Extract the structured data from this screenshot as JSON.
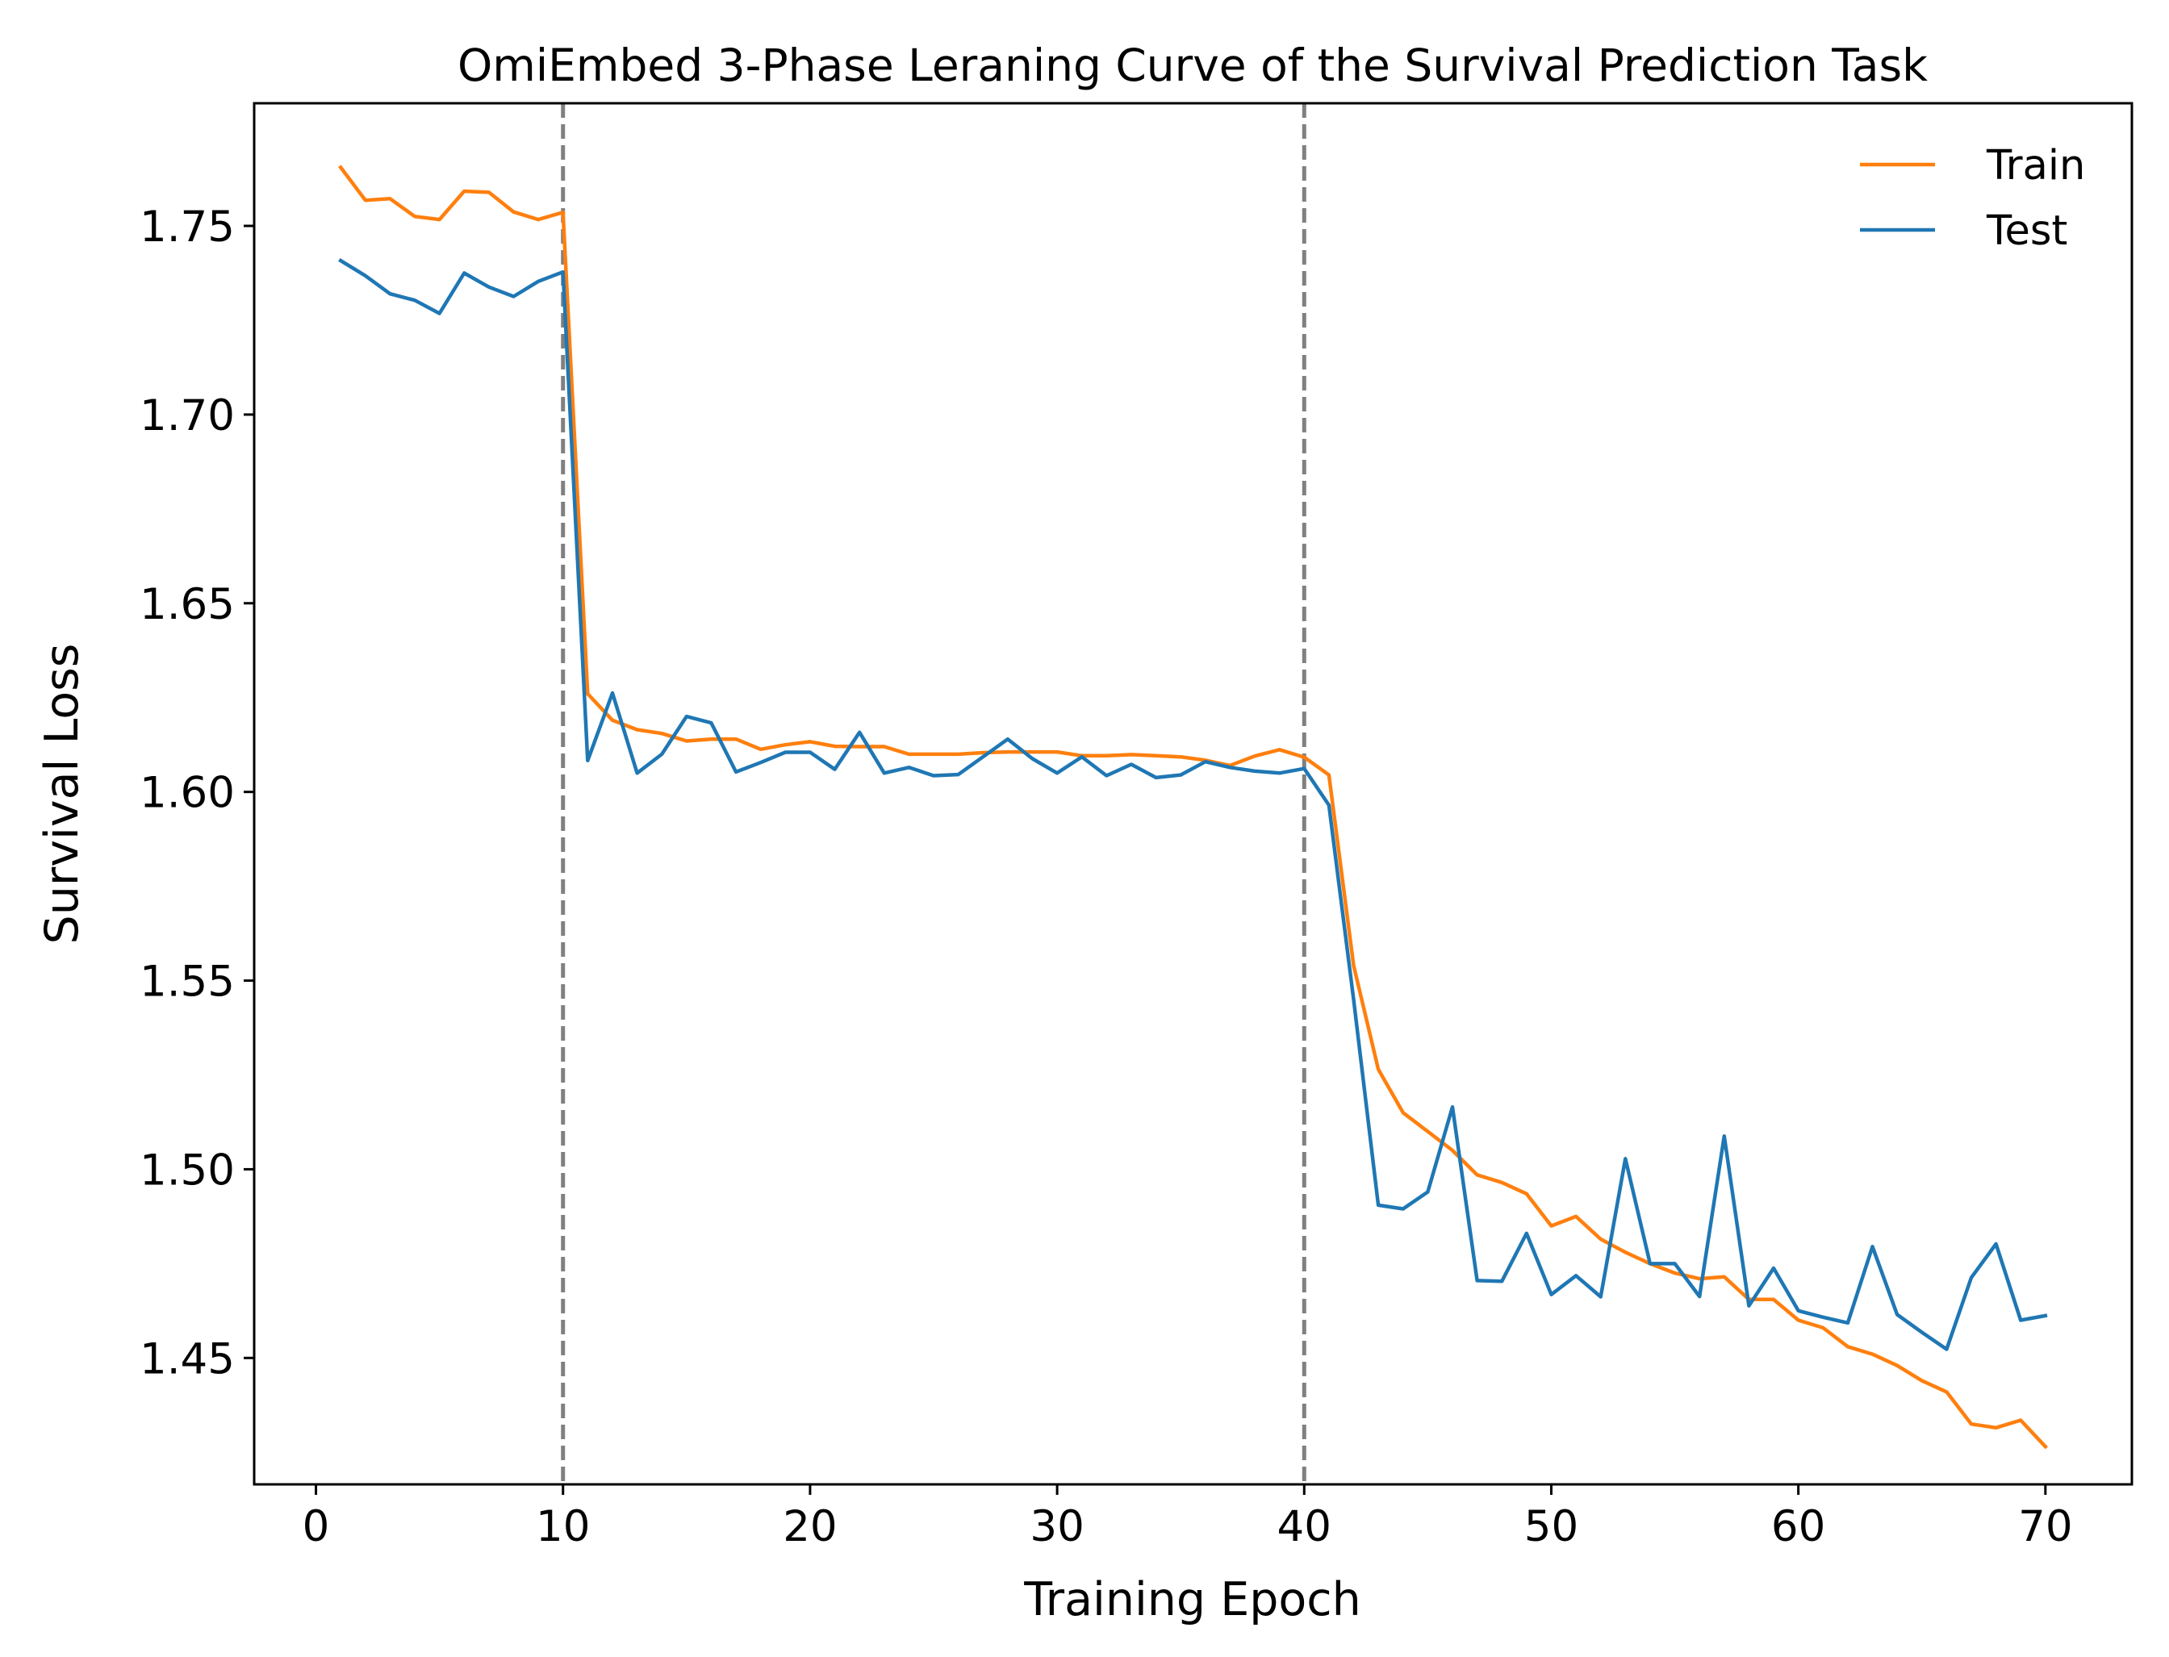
{
  "chart_data": {
    "type": "line",
    "title": "OmiEmbed 3-Phase Leraning Curve of the Survival Prediction Task",
    "xlabel": "Training Epoch",
    "ylabel": "Survival Loss",
    "xlim": [
      -2.5,
      73.5
    ],
    "ylim": [
      1.4165,
      1.7825
    ],
    "xticks": [
      0,
      10,
      20,
      30,
      40,
      50,
      60,
      70
    ],
    "xtick_labels": [
      "0",
      "10",
      "20",
      "30",
      "40",
      "50",
      "60",
      "70"
    ],
    "yticks": [
      1.45,
      1.5,
      1.55,
      1.6,
      1.65,
      1.7,
      1.75
    ],
    "ytick_labels": [
      "1.45",
      "1.50",
      "1.55",
      "1.60",
      "1.65",
      "1.70",
      "1.75"
    ],
    "grid": false,
    "legend_position": "top-right",
    "phase_boundaries": [
      10,
      40
    ],
    "phase_boundary_color": "#808080",
    "x": [
      1,
      2,
      3,
      4,
      5,
      6,
      7,
      8,
      9,
      10,
      11,
      12,
      13,
      14,
      15,
      16,
      17,
      18,
      19,
      20,
      21,
      22,
      23,
      24,
      25,
      26,
      27,
      28,
      29,
      30,
      31,
      32,
      33,
      34,
      35,
      36,
      37,
      38,
      39,
      40,
      41,
      42,
      43,
      44,
      45,
      46,
      47,
      48,
      49,
      50,
      51,
      52,
      53,
      54,
      55,
      56,
      57,
      58,
      59,
      60,
      61,
      62,
      63,
      64,
      65,
      66,
      67,
      68,
      69,
      70
    ],
    "series": [
      {
        "name": "Train",
        "color": "#ff7f0e",
        "values": [
          1.7655,
          1.7568,
          1.7572,
          1.7525,
          1.7517,
          1.7592,
          1.7589,
          1.7537,
          1.7517,
          1.7536,
          1.626,
          1.619,
          1.6165,
          1.6155,
          1.6135,
          1.614,
          1.614,
          1.6113,
          1.6125,
          1.6133,
          1.6121,
          1.612,
          1.612,
          1.61,
          1.61,
          1.61,
          1.6104,
          1.6106,
          1.6106,
          1.6106,
          1.6096,
          1.6096,
          1.6099,
          1.6096,
          1.6093,
          1.6084,
          1.607,
          1.6095,
          1.6112,
          1.6092,
          1.6045,
          1.554,
          1.5265,
          1.515,
          1.51,
          1.505,
          1.4985,
          1.4965,
          1.4935,
          1.485,
          1.4875,
          1.4815,
          1.478,
          1.475,
          1.4725,
          1.471,
          1.4715,
          1.4655,
          1.4655,
          1.46,
          1.458,
          1.453,
          1.451,
          1.448,
          1.444,
          1.441,
          1.4325,
          1.4315,
          1.4335,
          1.4265
        ]
      },
      {
        "name": "Test",
        "color": "#1f77b4",
        "values": [
          1.7408,
          1.7368,
          1.732,
          1.7303,
          1.7268,
          1.7375,
          1.7338,
          1.7313,
          1.7353,
          1.7378,
          1.6083,
          1.6262,
          1.605,
          1.61,
          1.62,
          1.6183,
          1.6053,
          1.6078,
          1.6105,
          1.6105,
          1.606,
          1.6158,
          1.605,
          1.6065,
          1.6043,
          1.6046,
          1.6093,
          1.614,
          1.6088,
          1.605,
          1.6093,
          1.6043,
          1.6073,
          1.6038,
          1.6045,
          1.608,
          1.6065,
          1.6055,
          1.605,
          1.6062,
          1.5965,
          1.545,
          1.4905,
          1.4895,
          1.494,
          1.5165,
          1.4705,
          1.4703,
          1.483,
          1.4668,
          1.4718,
          1.4662,
          1.5028,
          1.475,
          1.475,
          1.4663,
          1.5088,
          1.4638,
          1.4738,
          1.4625,
          1.4608,
          1.4593,
          1.4795,
          1.4615,
          1.4568,
          1.4523,
          1.4713,
          1.4802,
          1.46,
          1.4612
        ]
      }
    ]
  }
}
